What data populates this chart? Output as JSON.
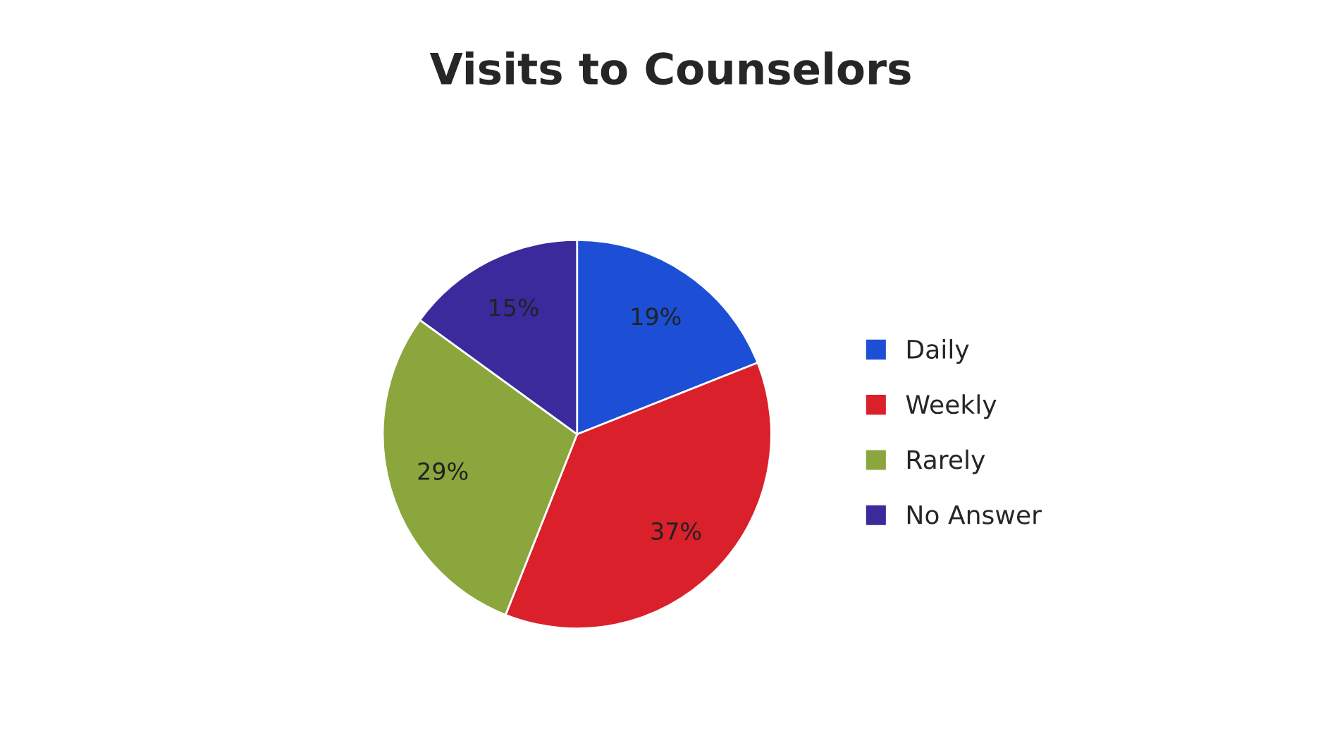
{
  "chart_data": {
    "type": "pie",
    "title": "Visits to Counselors",
    "categories": [
      "Daily",
      "Weekly",
      "Rarely",
      "No Answer"
    ],
    "values": [
      19,
      37,
      29,
      15
    ],
    "colors": [
      "#1c4fd6",
      "#d9202b",
      "#8aa63c",
      "#3a2a9c"
    ],
    "value_labels": [
      "19%",
      "37%",
      "29%",
      "15%"
    ],
    "legend": "right"
  }
}
